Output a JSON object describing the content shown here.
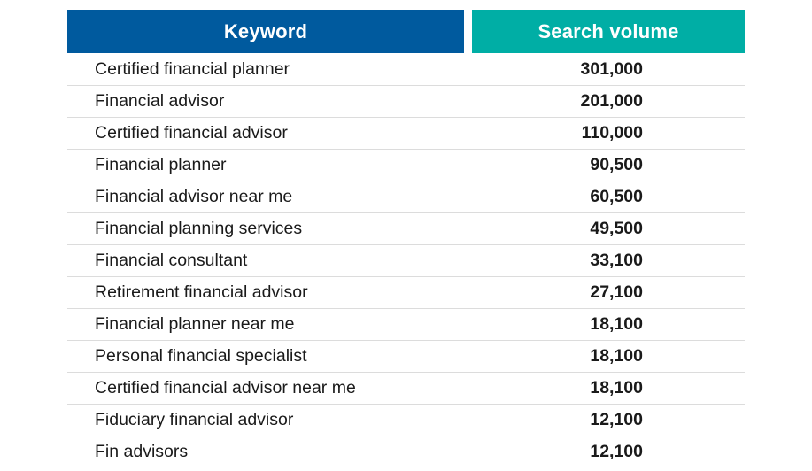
{
  "colors": {
    "keyword_header_bg": "#005a9e",
    "volume_header_bg": "#00aea5",
    "row_divider": "#dcdcdc",
    "text": "#1a1a1a"
  },
  "chart_data": {
    "type": "table",
    "columns": [
      "Keyword",
      "Search volume"
    ],
    "rows": [
      {
        "keyword": "Certified financial planner",
        "volume": "301,000"
      },
      {
        "keyword": "Financial advisor",
        "volume": "201,000"
      },
      {
        "keyword": "Certified financial advisor",
        "volume": "110,000"
      },
      {
        "keyword": "Financial planner",
        "volume": "90,500"
      },
      {
        "keyword": "Financial advisor near me",
        "volume": "60,500"
      },
      {
        "keyword": "Financial planning services",
        "volume": "49,500"
      },
      {
        "keyword": "Financial consultant",
        "volume": "33,100"
      },
      {
        "keyword": "Retirement financial advisor",
        "volume": "27,100"
      },
      {
        "keyword": "Financial planner near me",
        "volume": "18,100"
      },
      {
        "keyword": "Personal financial specialist",
        "volume": "18,100"
      },
      {
        "keyword": "Certified financial advisor near me",
        "volume": "18,100"
      },
      {
        "keyword": "Fiduciary financial advisor",
        "volume": "12,100"
      },
      {
        "keyword": "Fin advisors",
        "volume": "12,100"
      }
    ]
  }
}
